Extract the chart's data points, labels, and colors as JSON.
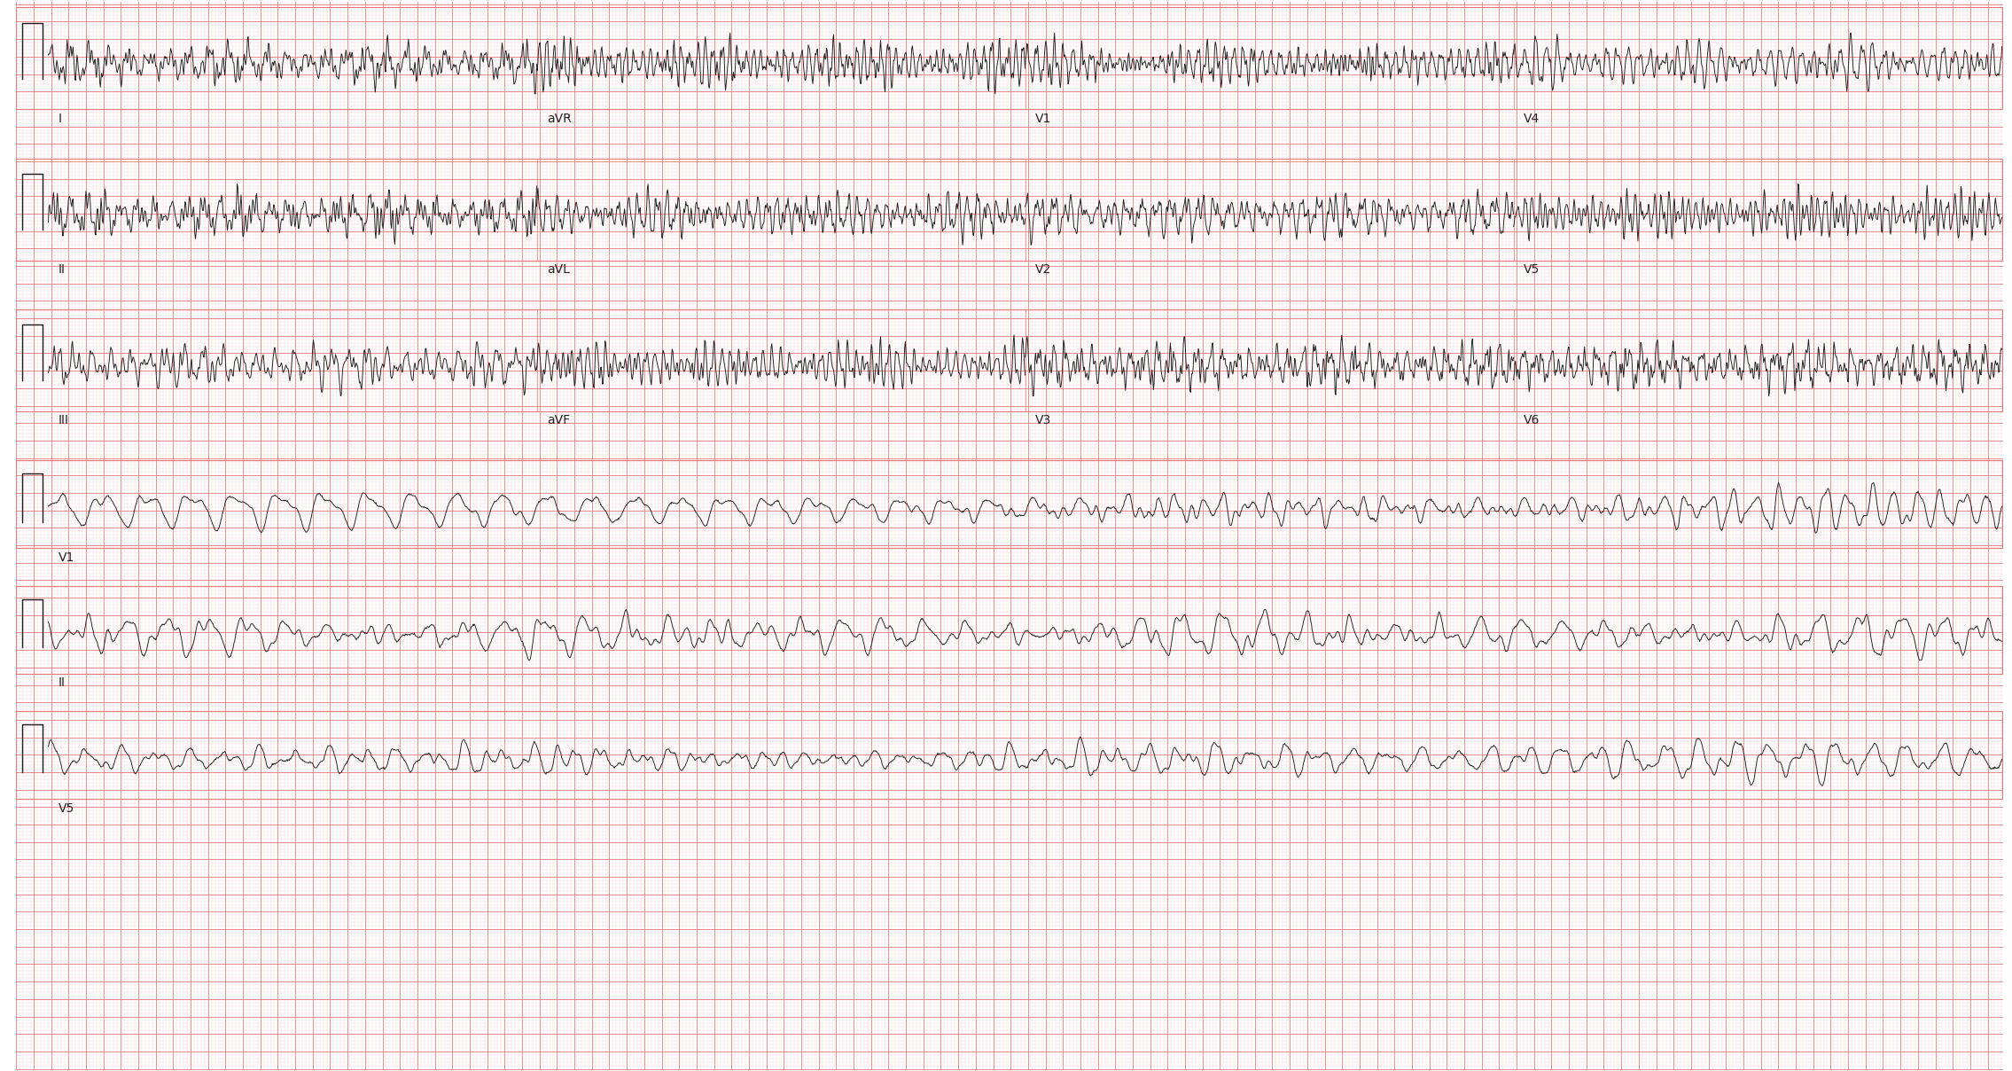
{
  "background_color": "#ffffff",
  "grid_major_color": "#e87878",
  "grid_minor_color": "#f9d0d0",
  "ecg_color": "#1a1a1a",
  "ecg_linewidth": 0.9,
  "fig_width": 22.7,
  "fig_height": 12.08,
  "dpi": 100,
  "rows": 6,
  "row_labels_multi": [
    [
      [
        "I",
        0.01
      ],
      [
        "aVR",
        0.26
      ],
      [
        "V1",
        0.51
      ],
      [
        "V4",
        0.76
      ]
    ],
    [
      [
        "II",
        0.01
      ],
      [
        "aVL",
        0.26
      ],
      [
        "V2",
        0.51
      ],
      [
        "V5",
        0.76
      ]
    ],
    [
      [
        "III",
        0.01
      ],
      [
        "aVF",
        0.26
      ],
      [
        "V3",
        0.51
      ],
      [
        "V6",
        0.76
      ]
    ]
  ],
  "row_labels_rhythm": [
    [
      [
        "V1",
        0.01
      ]
    ],
    [
      [
        "II",
        0.01
      ]
    ],
    [
      [
        "V5",
        0.01
      ]
    ]
  ],
  "num_points": 3000,
  "minor_per_major": 5
}
